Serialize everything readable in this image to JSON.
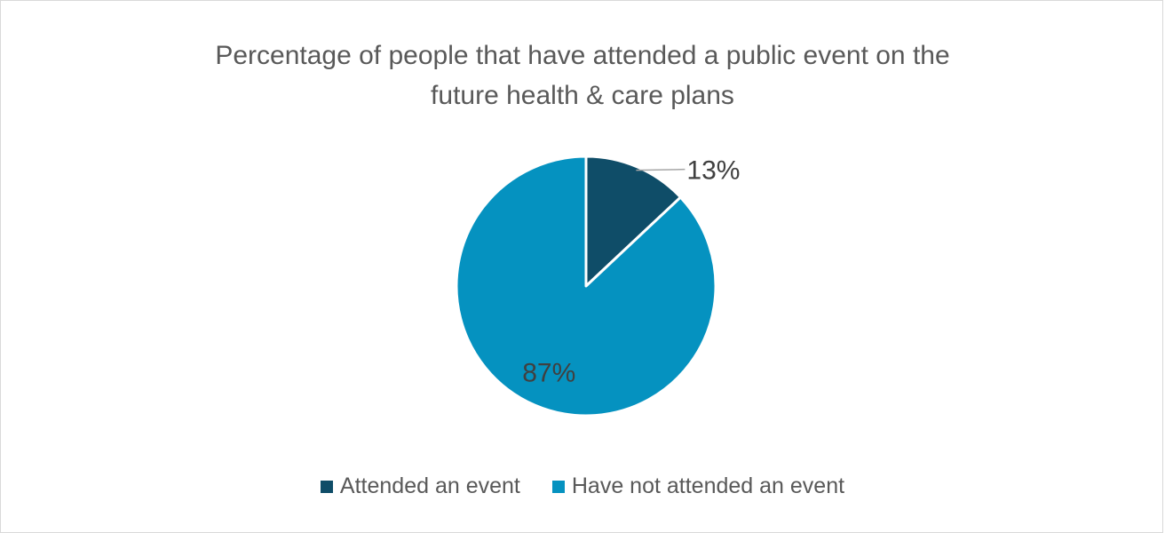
{
  "chart_data": {
    "type": "pie",
    "title": "Percentage of people that have attended a public event on the future health & care plans",
    "title_lines": [
      "Percentage of people that have attended a public event on the",
      "future health & care plans"
    ],
    "categories": [
      "Attended an event",
      "Have not attended an event"
    ],
    "values": [
      13,
      87
    ],
    "data_labels": [
      "13%",
      "87%"
    ],
    "colors": [
      "#0f4d68",
      "#0592c0"
    ],
    "legend_position": "bottom",
    "start_angle_deg": 0,
    "direction": "clockwise"
  }
}
